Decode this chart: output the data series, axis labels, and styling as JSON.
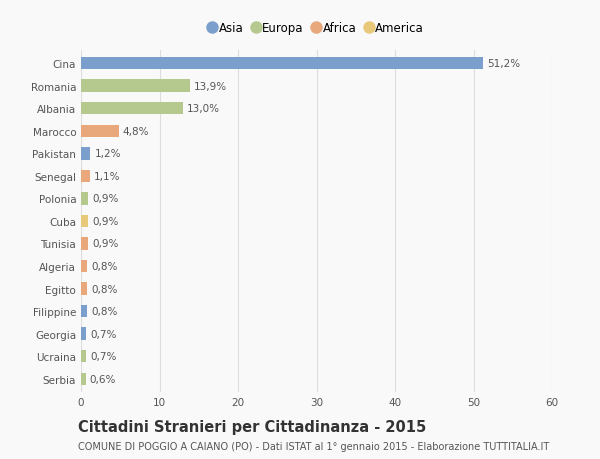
{
  "countries": [
    "Cina",
    "Romania",
    "Albania",
    "Marocco",
    "Pakistan",
    "Senegal",
    "Polonia",
    "Cuba",
    "Tunisia",
    "Algeria",
    "Egitto",
    "Filippine",
    "Georgia",
    "Ucraina",
    "Serbia"
  ],
  "values": [
    51.2,
    13.9,
    13.0,
    4.8,
    1.2,
    1.1,
    0.9,
    0.9,
    0.9,
    0.8,
    0.8,
    0.8,
    0.7,
    0.7,
    0.6
  ],
  "labels": [
    "51,2%",
    "13,9%",
    "13,0%",
    "4,8%",
    "1,2%",
    "1,1%",
    "0,9%",
    "0,9%",
    "0,9%",
    "0,8%",
    "0,8%",
    "0,8%",
    "0,7%",
    "0,7%",
    "0,6%"
  ],
  "continents": [
    "Asia",
    "Europa",
    "Europa",
    "Africa",
    "Asia",
    "Africa",
    "Europa",
    "America",
    "Africa",
    "Africa",
    "Africa",
    "Asia",
    "Asia",
    "Europa",
    "Europa"
  ],
  "continent_colors": {
    "Asia": "#7b9fcc",
    "Europa": "#b5c98e",
    "Africa": "#e8a87c",
    "America": "#e8c87a"
  },
  "legend_items": [
    "Asia",
    "Europa",
    "Africa",
    "America"
  ],
  "legend_colors": [
    "#7b9fcc",
    "#b5c98e",
    "#e8a87c",
    "#e8c87a"
  ],
  "title": "Cittadini Stranieri per Cittadinanza - 2015",
  "subtitle": "COMUNE DI POGGIO A CAIANO (PO) - Dati ISTAT al 1° gennaio 2015 - Elaborazione TUTTITALIA.IT",
  "xlim": [
    0,
    60
  ],
  "xticks": [
    0,
    10,
    20,
    30,
    40,
    50,
    60
  ],
  "background_color": "#f9f9f9",
  "bar_height": 0.55,
  "grid_color": "#dddddd",
  "text_color": "#555555",
  "label_fontsize": 7.5,
  "tick_fontsize": 7.5,
  "title_fontsize": 10.5,
  "subtitle_fontsize": 7.0,
  "legend_fontsize": 8.5
}
